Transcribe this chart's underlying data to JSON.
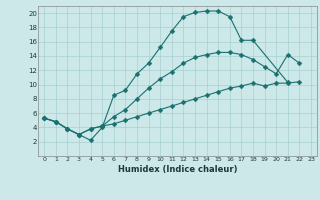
{
  "xlabel": "Humidex (Indice chaleur)",
  "bg_color": "#cce8e8",
  "line_color": "#1a7070",
  "grid_color": "#a8d0d0",
  "xlim": [
    -0.5,
    23.5
  ],
  "ylim": [
    0,
    21
  ],
  "xticks": [
    0,
    1,
    2,
    3,
    4,
    5,
    6,
    7,
    8,
    9,
    10,
    11,
    12,
    13,
    14,
    15,
    16,
    17,
    18,
    19,
    20,
    21,
    22,
    23
  ],
  "yticks": [
    2,
    4,
    6,
    8,
    10,
    12,
    14,
    16,
    18,
    20
  ],
  "curve1_x": [
    0,
    1,
    2,
    3,
    4,
    5,
    6,
    7,
    8,
    9,
    10,
    11,
    12,
    13,
    14,
    15,
    16,
    17,
    18,
    21
  ],
  "curve1_y": [
    5.3,
    4.8,
    3.8,
    3.0,
    2.2,
    4.0,
    8.5,
    9.2,
    11.5,
    13.0,
    15.2,
    17.5,
    19.5,
    20.1,
    20.3,
    20.3,
    19.5,
    16.2,
    16.2,
    10.3
  ],
  "curve2_x": [
    0,
    1,
    2,
    3,
    4,
    5,
    6,
    7,
    8,
    9,
    10,
    11,
    12,
    13,
    14,
    15,
    16,
    17,
    18,
    19,
    20,
    21,
    22
  ],
  "curve2_y": [
    5.3,
    4.8,
    3.8,
    3.0,
    3.8,
    4.2,
    5.5,
    6.5,
    8.0,
    9.5,
    10.8,
    11.8,
    13.0,
    13.8,
    14.2,
    14.5,
    14.5,
    14.2,
    13.5,
    12.5,
    11.5,
    14.2,
    13.0
  ],
  "curve3_x": [
    0,
    1,
    2,
    3,
    4,
    5,
    6,
    7,
    8,
    9,
    10,
    11,
    12,
    13,
    14,
    15,
    16,
    17,
    18,
    19,
    20,
    21,
    22
  ],
  "curve3_y": [
    5.3,
    4.8,
    3.8,
    3.0,
    3.8,
    4.2,
    4.5,
    5.0,
    5.5,
    6.0,
    6.5,
    7.0,
    7.5,
    8.0,
    8.5,
    9.0,
    9.5,
    9.8,
    10.2,
    9.8,
    10.2,
    10.2,
    10.4
  ]
}
